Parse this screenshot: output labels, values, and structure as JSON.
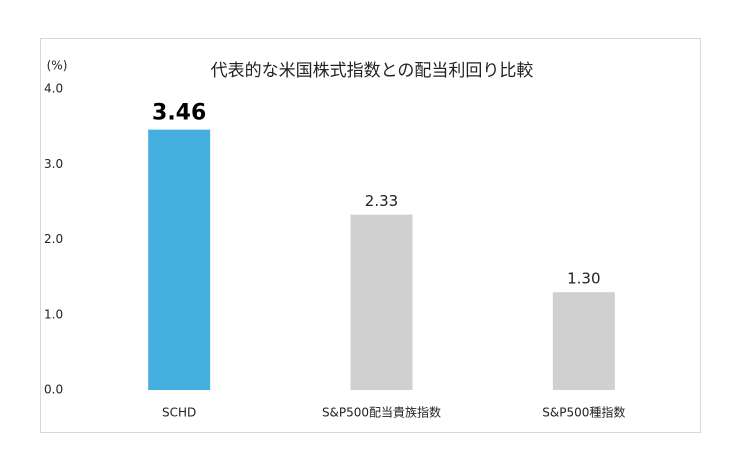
{
  "chart_data": {
    "type": "bar",
    "title": "代表的な米国株式指数との配当利回り比較",
    "y_unit": "(%)",
    "categories": [
      "SCHD",
      "S&P500配当貴族指数",
      "S&P500種指数"
    ],
    "values": [
      3.46,
      2.33,
      1.3
    ],
    "value_labels": [
      "3.46",
      "2.33",
      "1.30"
    ],
    "colors": [
      "#45b0e0",
      "#d0d0d0",
      "#d0d0d0"
    ],
    "ylim": [
      0,
      4
    ],
    "yticks": [
      {
        "value": 0,
        "label": "0.0"
      },
      {
        "value": 1,
        "label": "1.0"
      },
      {
        "value": 2,
        "label": "2.0"
      },
      {
        "value": 3,
        "label": "3.0"
      },
      {
        "value": 4,
        "label": "4.0"
      }
    ],
    "grid": false
  }
}
